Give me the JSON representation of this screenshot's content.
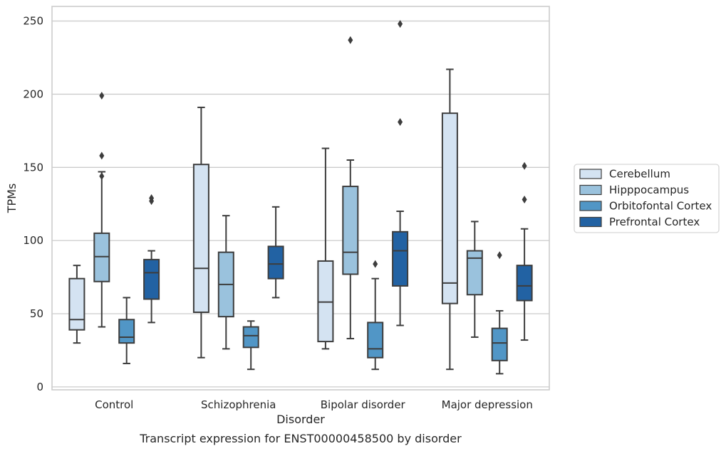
{
  "chart_data": {
    "type": "boxplot",
    "title": "",
    "caption": "Transcript expression for ENST00000458500 by disorder",
    "xlabel": "Disorder",
    "ylabel": "TPMs",
    "ylim": [
      -2,
      260
    ],
    "yticks": [
      0,
      50,
      100,
      150,
      200,
      250
    ],
    "grid": "horizontal",
    "legend_position": "right",
    "categories": [
      "Control",
      "Schizophrenia",
      "Bipolar disorder",
      "Major depression"
    ],
    "series": [
      {
        "name": "Cerebellum",
        "color": "#d4e3f2",
        "boxes": [
          {
            "whisker_low": 30,
            "q1": 39,
            "median": 46,
            "q3": 74,
            "whisker_high": 83,
            "outliers": []
          },
          {
            "whisker_low": 20,
            "q1": 51,
            "median": 81,
            "q3": 152,
            "whisker_high": 191,
            "outliers": []
          },
          {
            "whisker_low": 26,
            "q1": 31,
            "median": 58,
            "q3": 86,
            "whisker_high": 163,
            "outliers": []
          },
          {
            "whisker_low": 12,
            "q1": 57,
            "median": 71,
            "q3": 187,
            "whisker_high": 217,
            "outliers": []
          }
        ]
      },
      {
        "name": "Hipppocampus",
        "color": "#9ac2dd",
        "boxes": [
          {
            "whisker_low": 41,
            "q1": 72,
            "median": 89,
            "q3": 105,
            "whisker_high": 147,
            "outliers": [
              144,
              158,
              199
            ]
          },
          {
            "whisker_low": 26,
            "q1": 48,
            "median": 70,
            "q3": 92,
            "whisker_high": 117,
            "outliers": []
          },
          {
            "whisker_low": 33,
            "q1": 77,
            "median": 92,
            "q3": 137,
            "whisker_high": 155,
            "outliers": [
              237
            ]
          },
          {
            "whisker_low": 34,
            "q1": 63,
            "median": 88,
            "q3": 93,
            "whisker_high": 113,
            "outliers": []
          }
        ]
      },
      {
        "name": "Orbitofontal Cortex",
        "color": "#5196c6",
        "boxes": [
          {
            "whisker_low": 16,
            "q1": 30,
            "median": 34,
            "q3": 46,
            "whisker_high": 61,
            "outliers": []
          },
          {
            "whisker_low": 12,
            "q1": 27,
            "median": 35,
            "q3": 41,
            "whisker_high": 45,
            "outliers": []
          },
          {
            "whisker_low": 12,
            "q1": 20,
            "median": 26,
            "q3": 44,
            "whisker_high": 74,
            "outliers": [
              84
            ]
          },
          {
            "whisker_low": 9,
            "q1": 18,
            "median": 30,
            "q3": 40,
            "whisker_high": 52,
            "outliers": [
              90
            ]
          }
        ]
      },
      {
        "name": "Prefrontal Cortex",
        "color": "#2262a3",
        "boxes": [
          {
            "whisker_low": 44,
            "q1": 60,
            "median": 78,
            "q3": 87,
            "whisker_high": 93,
            "outliers": [
              127,
              129
            ]
          },
          {
            "whisker_low": 61,
            "q1": 74,
            "median": 84,
            "q3": 96,
            "whisker_high": 123,
            "outliers": []
          },
          {
            "whisker_low": 42,
            "q1": 69,
            "median": 93,
            "q3": 106,
            "whisker_high": 120,
            "outliers": [
              181,
              248
            ]
          },
          {
            "whisker_low": 32,
            "q1": 59,
            "median": 69,
            "q3": 83,
            "whisker_high": 108,
            "outliers": [
              128,
              151
            ]
          }
        ]
      }
    ]
  }
}
